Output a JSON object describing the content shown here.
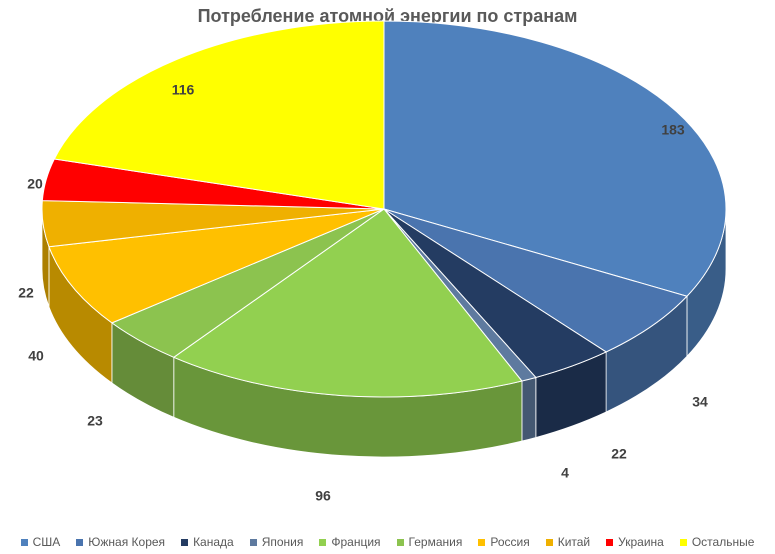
{
  "chart_data": {
    "type": "pie",
    "style": "3d-exploded",
    "title": "Потребление атомной энергии по странам",
    "series": [
      {
        "name": "США",
        "value": 183,
        "color": "#4f81bd"
      },
      {
        "name": "Южная Корея",
        "value": 34,
        "color": "#4a74ae"
      },
      {
        "name": "Канада",
        "value": 22,
        "color": "#243c62"
      },
      {
        "name": "Япония",
        "value": 4,
        "color": "#5e7a9f"
      },
      {
        "name": "Франция",
        "value": 96,
        "color": "#92d050"
      },
      {
        "name": "Германия",
        "value": 23,
        "color": "#8cc34f"
      },
      {
        "name": "Россия",
        "value": 40,
        "color": "#ffc000"
      },
      {
        "name": "Китай",
        "value": 22,
        "color": "#efb000"
      },
      {
        "name": "Украина",
        "value": 20,
        "color": "#ff0000"
      },
      {
        "name": "Остальные",
        "value": 116,
        "color": "#ffff00"
      }
    ],
    "legend_position": "bottom"
  }
}
